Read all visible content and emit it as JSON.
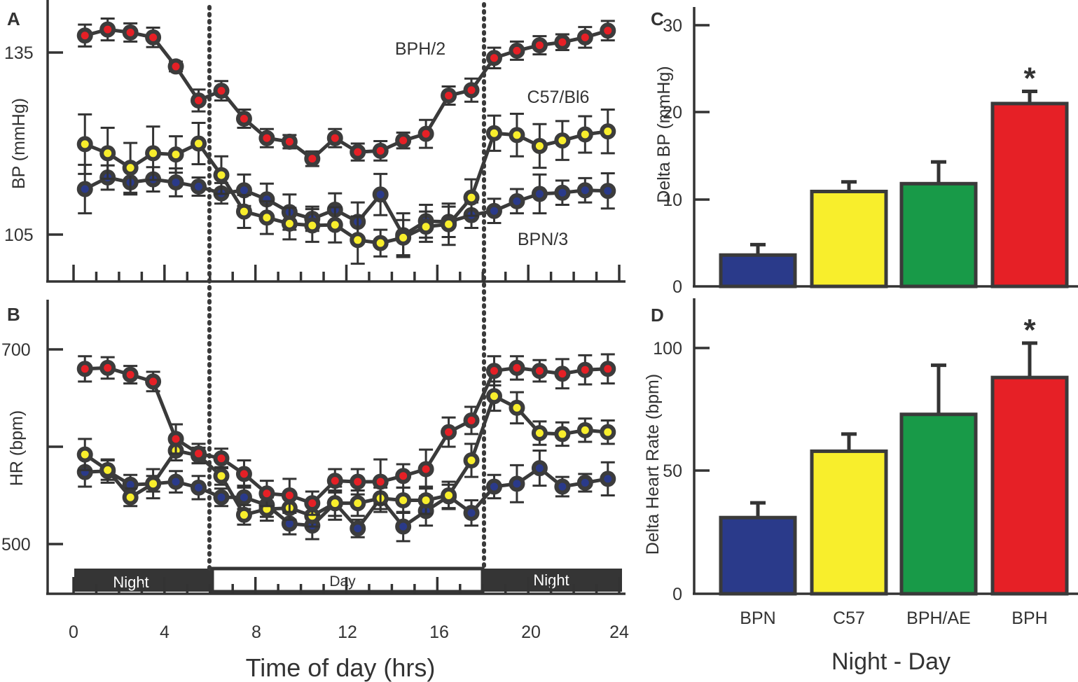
{
  "figure": {
    "colors": {
      "BPN": "#2a3a8a",
      "C57": "#f8ee2c",
      "BPH_AE": "#189a48",
      "BPH": "#e62026",
      "ink": "#333333"
    },
    "panels": {
      "A": "A",
      "B": "B",
      "C": "C",
      "D": "D"
    },
    "xlabel": "Time of day (hrs)",
    "xticks": [
      "0",
      "4",
      "8",
      "12",
      "16",
      "20",
      "24"
    ],
    "bar_xlabel": "Night - Day",
    "light_cycle": {
      "night1": "Night",
      "day": "Day",
      "night2": "Night"
    },
    "series_labels": {
      "bph": "BPH/2",
      "c57": "C57/Bl6",
      "bpn": "BPN/3"
    }
  },
  "chart_data": [
    {
      "panel": "A",
      "type": "line",
      "ylabel": "BP (mmHg)",
      "yticks": [
        "105",
        "135"
      ],
      "ylim": [
        97,
        143
      ],
      "xlim": [
        0,
        24
      ],
      "x": [
        0.5,
        1.5,
        2.5,
        3.5,
        4.5,
        5.5,
        6.5,
        7.5,
        8.5,
        9.5,
        10.5,
        11.5,
        12.5,
        13.5,
        14.5,
        15.5,
        16.5,
        17.5,
        18.5,
        19.5,
        20.5,
        21.5,
        22.5,
        23.5
      ],
      "night_day_boundaries": [
        6,
        18
      ],
      "series": [
        {
          "name": "BPH/2",
          "color": "#e62026",
          "values": [
            137.8,
            138.8,
            138.3,
            137.5,
            132.7,
            127.1,
            128.7,
            124.1,
            120.9,
            120.3,
            117.5,
            120.9,
            118.6,
            118.8,
            120.5,
            121.6,
            127.9,
            128.8,
            134.1,
            135.3,
            136.2,
            136.7,
            137.5,
            138.6
          ],
          "errors": [
            1.8,
            1.8,
            1.5,
            1.6,
            0.8,
            1.8,
            1.6,
            1.5,
            1.5,
            1.1,
            1.2,
            1.5,
            1.4,
            1.6,
            1.3,
            2.3,
            1.5,
            1.9,
            1.7,
            1.5,
            1.5,
            1.3,
            1.7,
            1.6
          ]
        },
        {
          "name": "C57/Bl6",
          "color": "#f8ee2c",
          "values": [
            119.9,
            118.4,
            116.0,
            118.4,
            118.2,
            120.0,
            114.8,
            108.8,
            107.8,
            106.8,
            106.5,
            106.6,
            104.1,
            103.6,
            104.5,
            106.3,
            106.7,
            111.1,
            121.7,
            121.4,
            119.6,
            120.5,
            121.5,
            122.0
          ],
          "errors": [
            4.9,
            4.2,
            4.1,
            4.4,
            3.0,
            3.4,
            3.1,
            2.7,
            2.7,
            2.6,
            2.7,
            2.9,
            3.9,
            2.2,
            2.9,
            2.5,
            3.4,
            3.0,
            2.9,
            3.5,
            3.6,
            3.2,
            3.0,
            3.6
          ]
        },
        {
          "name": "BPN/3",
          "color": "#2a3a8a",
          "values": [
            112.5,
            114.4,
            113.6,
            114.1,
            113.6,
            112.9,
            111.8,
            112.3,
            110.8,
            108.7,
            107.6,
            109.1,
            107.1,
            111.6,
            104.9,
            107.2,
            107.1,
            108.2,
            108.9,
            110.5,
            111.7,
            111.9,
            112.3,
            112.2
          ],
          "errors": [
            4.0,
            2.0,
            2.0,
            2.0,
            2.3,
            1.5,
            1.7,
            2.6,
            2.6,
            2.9,
            2.0,
            2.7,
            3.2,
            3.4,
            3.6,
            2.7,
            2.5,
            2.1,
            2.0,
            2.0,
            3.2,
            2.0,
            2.0,
            2.9
          ]
        }
      ]
    },
    {
      "panel": "B",
      "type": "line",
      "ylabel": "HR (bpm)",
      "yticks": [
        "500",
        "",
        "700"
      ],
      "ylim": [
        453,
        720
      ],
      "xlim": [
        0,
        24
      ],
      "x": [
        0.5,
        1.5,
        2.5,
        3.5,
        4.5,
        5.5,
        6.5,
        7.5,
        8.5,
        9.5,
        10.5,
        11.5,
        12.5,
        13.5,
        14.5,
        15.5,
        16.5,
        17.5,
        18.5,
        19.5,
        20.5,
        21.5,
        22.5,
        23.5
      ],
      "night_day_boundaries": [
        6,
        18
      ],
      "series": [
        {
          "name": "BPH/2",
          "color": "#e62026",
          "values": [
            680,
            681,
            674,
            667,
            608,
            593,
            588,
            572,
            552,
            550,
            542,
            565,
            564,
            564,
            570,
            577,
            615,
            627,
            678,
            681,
            678,
            675,
            679,
            680
          ],
          "errors": [
            13,
            11,
            9,
            10,
            15,
            10,
            10,
            14,
            13,
            17,
            12,
            12,
            13,
            23,
            12,
            20,
            15,
            14,
            15,
            12,
            11,
            15,
            15,
            15
          ]
        },
        {
          "name": "C57/Bl6",
          "color": "#f8ee2c",
          "values": [
            592,
            576,
            548,
            562,
            596,
            591,
            570,
            530,
            536,
            537,
            529,
            542,
            542,
            547,
            545,
            545,
            550,
            586,
            652,
            640,
            614,
            613,
            617,
            615
          ],
          "errors": [
            16,
            10,
            9,
            8,
            10,
            8,
            9,
            10,
            12,
            12,
            11,
            13,
            13,
            11,
            13,
            14,
            14,
            17,
            15,
            16,
            12,
            12,
            12,
            12
          ]
        },
        {
          "name": "BPN/3",
          "color": "#2a3a8a",
          "values": [
            574,
            575,
            561,
            562,
            564,
            558,
            548,
            548,
            540,
            521,
            519,
            542,
            516,
            547,
            518,
            534,
            549,
            532,
            559,
            562,
            578,
            559,
            563,
            567
          ],
          "errors": [
            15,
            12,
            10,
            15,
            11,
            12,
            9,
            12,
            12,
            11,
            14,
            17,
            9,
            14,
            15,
            15,
            12,
            13,
            12,
            19,
            18,
            10,
            9,
            17
          ]
        }
      ]
    },
    {
      "panel": "C",
      "type": "bar",
      "ylabel": "Delta BP (mmHg)",
      "categories": [
        "BPN",
        "C57",
        "BPH/AE",
        "BPH"
      ],
      "values": [
        3.6,
        10.9,
        11.8,
        21.0
      ],
      "errors": [
        1.2,
        1.1,
        2.5,
        1.4
      ],
      "colors": [
        "#2a3a8a",
        "#f8ee2c",
        "#189a48",
        "#e62026"
      ],
      "significance": [
        "",
        "",
        "",
        "*"
      ],
      "yticks": [
        "0",
        "10",
        "20",
        "30"
      ],
      "ylim": [
        0,
        30
      ]
    },
    {
      "panel": "D",
      "type": "bar",
      "ylabel": "Delta Heart Rate (bpm)",
      "categories": [
        "BPN",
        "C57",
        "BPH/AE",
        "BPH"
      ],
      "values": [
        31,
        58,
        73,
        88
      ],
      "errors": [
        6,
        7,
        20,
        14
      ],
      "colors": [
        "#2a3a8a",
        "#f8ee2c",
        "#189a48",
        "#e62026"
      ],
      "significance": [
        "",
        "",
        "",
        "*"
      ],
      "yticks": [
        "0",
        "50",
        "100"
      ],
      "ylim": [
        0,
        100
      ]
    }
  ]
}
